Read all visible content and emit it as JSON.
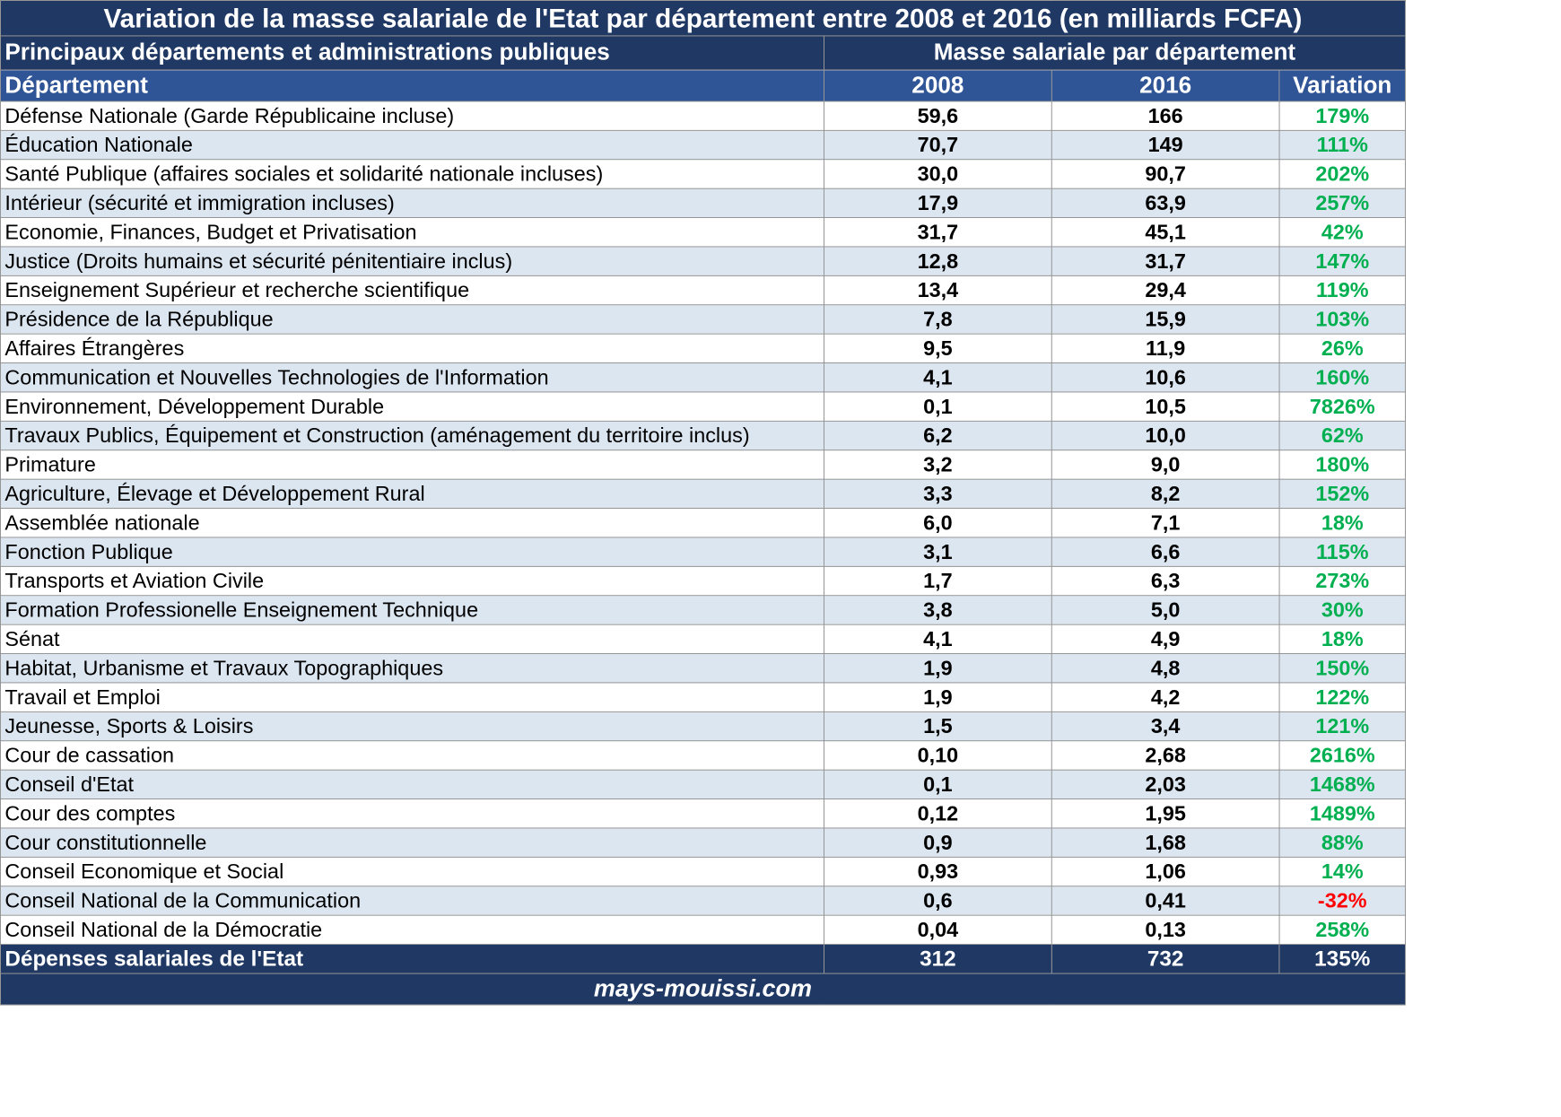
{
  "title": "Variation de la masse salariale de l'Etat par département entre 2008 et 2016 (en milliards FCFA)",
  "header": {
    "group_left": "Principaux départements et administrations publiques",
    "group_right": "Masse salariale par département",
    "col_dept": "Département",
    "col_2008": "2008",
    "col_2016": "2016",
    "col_variation": "Variation"
  },
  "rows": [
    {
      "dept": "Défense Nationale (Garde Républicaine incluse)",
      "v2008": "59,6",
      "v2016": "166",
      "variation": "179%"
    },
    {
      "dept": "Éducation Nationale",
      "v2008": "70,7",
      "v2016": "149",
      "variation": "111%"
    },
    {
      "dept": "Santé Publique (affaires sociales et solidarité nationale incluses)",
      "v2008": "30,0",
      "v2016": "90,7",
      "variation": "202%"
    },
    {
      "dept": "Intérieur (sécurité et immigration incluses)",
      "v2008": "17,9",
      "v2016": "63,9",
      "variation": "257%"
    },
    {
      "dept": "Economie, Finances, Budget et Privatisation",
      "v2008": "31,7",
      "v2016": "45,1",
      "variation": "42%"
    },
    {
      "dept": "Justice (Droits humains et sécurité pénitentiaire inclus)",
      "v2008": "12,8",
      "v2016": "31,7",
      "variation": "147%"
    },
    {
      "dept": "Enseignement Supérieur et recherche scientifique",
      "v2008": "13,4",
      "v2016": "29,4",
      "variation": "119%"
    },
    {
      "dept": "Présidence de la République",
      "v2008": "7,8",
      "v2016": "15,9",
      "variation": "103%"
    },
    {
      "dept": "Affaires Étrangères",
      "v2008": "9,5",
      "v2016": "11,9",
      "variation": "26%"
    },
    {
      "dept": "Communication et Nouvelles Technologies de l'Information",
      "v2008": "4,1",
      "v2016": "10,6",
      "variation": "160%"
    },
    {
      "dept": "Environnement, Développement Durable",
      "v2008": "0,1",
      "v2016": "10,5",
      "variation": "7826%"
    },
    {
      "dept": "Travaux Publics, Équipement et Construction (aménagement du territoire inclus)",
      "v2008": "6,2",
      "v2016": "10,0",
      "variation": "62%"
    },
    {
      "dept": "Primature",
      "v2008": "3,2",
      "v2016": "9,0",
      "variation": "180%"
    },
    {
      "dept": "Agriculture, Élevage et Développement Rural",
      "v2008": "3,3",
      "v2016": "8,2",
      "variation": "152%"
    },
    {
      "dept": "Assemblée nationale",
      "v2008": "6,0",
      "v2016": "7,1",
      "variation": "18%"
    },
    {
      "dept": "Fonction Publique",
      "v2008": "3,1",
      "v2016": "6,6",
      "variation": "115%"
    },
    {
      "dept": "Transports et Aviation Civile",
      "v2008": "1,7",
      "v2016": "6,3",
      "variation": "273%"
    },
    {
      "dept": "Formation Professionelle Enseignement Technique",
      "v2008": "3,8",
      "v2016": "5,0",
      "variation": "30%"
    },
    {
      "dept": "Sénat",
      "v2008": "4,1",
      "v2016": "4,9",
      "variation": "18%"
    },
    {
      "dept": "Habitat, Urbanisme et Travaux Topographiques",
      "v2008": "1,9",
      "v2016": "4,8",
      "variation": "150%"
    },
    {
      "dept": "Travail et Emploi",
      "v2008": "1,9",
      "v2016": "4,2",
      "variation": "122%"
    },
    {
      "dept": "Jeunesse, Sports & Loisirs",
      "v2008": "1,5",
      "v2016": "3,4",
      "variation": "121%"
    },
    {
      "dept": "Cour de cassation",
      "v2008": "0,10",
      "v2016": "2,68",
      "variation": "2616%"
    },
    {
      "dept": "Conseil d'Etat",
      "v2008": "0,1",
      "v2016": "2,03",
      "variation": "1468%"
    },
    {
      "dept": "Cour des comptes",
      "v2008": "0,12",
      "v2016": "1,95",
      "variation": "1489%"
    },
    {
      "dept": "Cour constitutionnelle",
      "v2008": "0,9",
      "v2016": "1,68",
      "variation": "88%"
    },
    {
      "dept": "Conseil Economique et Social",
      "v2008": "0,93",
      "v2016": "1,06",
      "variation": "14%"
    },
    {
      "dept": "Conseil National de la Communication",
      "v2008": "0,6",
      "v2016": "0,41",
      "variation": "-32%"
    },
    {
      "dept": "Conseil National de la Démocratie",
      "v2008": "0,04",
      "v2016": "0,13",
      "variation": "258%"
    }
  ],
  "total": {
    "label": "Dépenses salariales de l'Etat",
    "v2008": "312",
    "v2016": "732",
    "variation": "135%"
  },
  "source": "mays-mouissi.com",
  "colors": {
    "dark_navy": "#1f3864",
    "header_blue": "#2f5597",
    "band": "#dce6f1",
    "positive": "#00b050",
    "negative": "#ff0000"
  }
}
